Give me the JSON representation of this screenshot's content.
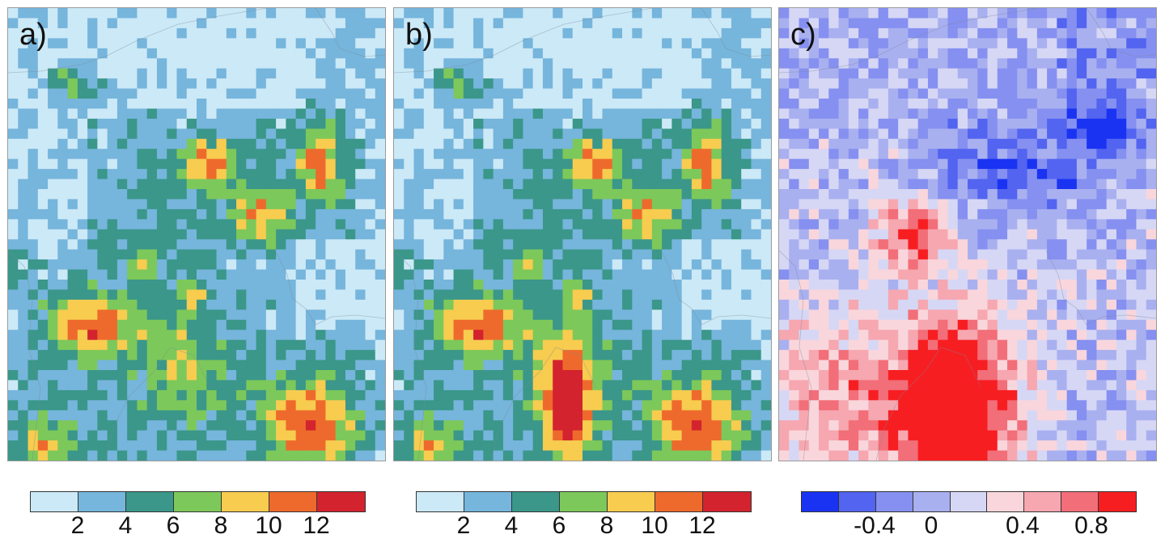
{
  "panels": [
    {
      "label": "a)",
      "scale": "abs",
      "variant": 0
    },
    {
      "label": "b)",
      "scale": "abs",
      "variant": 1
    },
    {
      "label": "c)",
      "scale": "diff",
      "variant": 2
    }
  ],
  "colorbars": {
    "abs": {
      "colors": [
        "#cce9f7",
        "#76b5dc",
        "#3a978a",
        "#7dc85a",
        "#f7cc4f",
        "#ee6a2c",
        "#d3232e"
      ],
      "ticks": [
        "2",
        "4",
        "6",
        "8",
        "10",
        "12"
      ]
    },
    "diff": {
      "colors": [
        "#1a33f2",
        "#5264f0",
        "#8590f0",
        "#a9b0f0",
        "#d6d7f5",
        "#f9d6dc",
        "#f6a7b0",
        "#f26e78",
        "#f71e22"
      ],
      "ticks": [
        "-0.4",
        "0",
        "0.4",
        "0.8"
      ]
    }
  }
}
